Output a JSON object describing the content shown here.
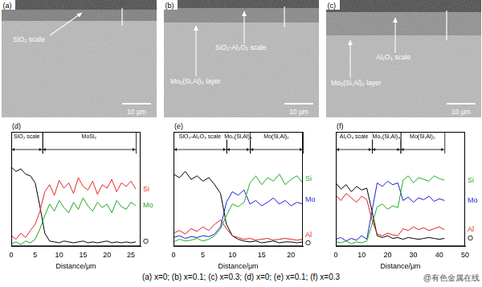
{
  "images": [
    {
      "panel": "(a)",
      "labels": [
        "SiO₂ scale"
      ],
      "scale_bar": "10 μm"
    },
    {
      "panel": "(b)",
      "labels": [
        "SiO₂-Al₂O₃ scale",
        "Mo₅(Si,Al)₃ layer"
      ],
      "scale_bar": "10 μm"
    },
    {
      "panel": "(c)",
      "labels": [
        "Al₂O₃ scale",
        "Mo₅(Si,Al)₃ layer"
      ],
      "scale_bar": "10 μm"
    }
  ],
  "chart_data": [
    {
      "type": "line",
      "panel": "(d)",
      "x_label": "Distance/μm",
      "xlim": [
        0,
        27
      ],
      "xticks": [
        0,
        5,
        10,
        15,
        20,
        25
      ],
      "ylim": [
        0,
        130
      ],
      "tick_labels": "x",
      "grid": false,
      "regions": [
        {
          "label": "SiO₂ scale",
          "start": 0,
          "end": 6.5
        },
        {
          "label": "MoSi₂",
          "start": 6.5,
          "end": 26
        }
      ],
      "x": [
        0,
        1,
        2,
        3,
        4,
        5,
        6,
        7,
        8,
        9,
        10,
        11,
        12,
        13,
        14,
        15,
        16,
        17,
        18,
        19,
        20,
        21,
        22,
        23,
        24,
        25,
        26
      ],
      "series": [
        {
          "name": "Si",
          "color": "#e8262a",
          "values": [
            12,
            8,
            15,
            10,
            18,
            25,
            40,
            62,
            70,
            58,
            75,
            66,
            72,
            60,
            78,
            68,
            64,
            74,
            59,
            70,
            66,
            76,
            62,
            72,
            68,
            74,
            65
          ]
        },
        {
          "name": "Mo",
          "color": "#22a322",
          "values": [
            3,
            5,
            2,
            6,
            4,
            8,
            20,
            35,
            48,
            40,
            52,
            44,
            38,
            50,
            42,
            55,
            46,
            40,
            50,
            44,
            48,
            38,
            52,
            45,
            42,
            50,
            46
          ]
        },
        {
          "name": "O",
          "color": "#000000",
          "values": [
            90,
            85,
            88,
            82,
            80,
            72,
            45,
            15,
            6,
            5,
            4,
            6,
            5,
            4,
            5,
            6,
            4,
            5,
            4,
            5,
            6,
            4,
            5,
            4,
            5,
            4,
            5
          ]
        }
      ]
    },
    {
      "type": "line",
      "panel": "(e)",
      "x_label": "Distance/μm",
      "xlim": [
        0,
        22
      ],
      "xticks": [
        0,
        5,
        10,
        15,
        20
      ],
      "ylim": [
        0,
        130
      ],
      "tick_labels": "x",
      "grid": false,
      "regions": [
        {
          "label": "SiO₂-Al₂O₃ scale",
          "start": 0,
          "end": 9
        },
        {
          "label": "Mo₅(Si,Al)₃",
          "start": 9,
          "end": 13
        },
        {
          "label": "Mo(Si,Al)₂",
          "start": 13,
          "end": 22
        }
      ],
      "x": [
        0,
        1,
        2,
        3,
        4,
        5,
        6,
        7,
        8,
        9,
        10,
        11,
        12,
        13,
        14,
        15,
        16,
        17,
        18,
        19,
        20,
        21,
        22
      ],
      "series": [
        {
          "name": "Si",
          "color": "#1fae1f",
          "values": [
            5,
            8,
            6,
            7,
            9,
            6,
            8,
            12,
            20,
            35,
            48,
            45,
            50,
            72,
            80,
            70,
            78,
            74,
            82,
            70,
            76,
            80,
            72
          ]
        },
        {
          "name": "Mo",
          "color": "#1f1fd0",
          "values": [
            10,
            12,
            9,
            11,
            10,
            12,
            11,
            14,
            22,
            50,
            62,
            58,
            64,
            48,
            52,
            46,
            50,
            55,
            48,
            52,
            46,
            50,
            48
          ]
        },
        {
          "name": "Al",
          "color": "#e02020",
          "values": [
            15,
            18,
            14,
            20,
            17,
            22,
            18,
            25,
            30,
            20,
            12,
            10,
            8,
            9,
            7,
            8,
            9,
            7,
            8,
            9,
            8,
            7,
            8
          ]
        },
        {
          "name": "O",
          "color": "#000000",
          "values": [
            82,
            78,
            85,
            76,
            80,
            74,
            78,
            70,
            60,
            25,
            12,
            8,
            6,
            5,
            6,
            4,
            5,
            6,
            4,
            5,
            5,
            4,
            5
          ]
        }
      ]
    },
    {
      "type": "line",
      "panel": "(f)",
      "x_label": "Distance/μm",
      "xlim": [
        0,
        50
      ],
      "xticks": [
        0,
        10,
        20,
        30,
        40,
        50
      ],
      "ylim": [
        0,
        130
      ],
      "tick_labels": "x",
      "grid": false,
      "regions": [
        {
          "label": "Al₂O₃ scale",
          "start": 0,
          "end": 14
        },
        {
          "label": "Mo₅(Si,Al)₃",
          "start": 14,
          "end": 25
        },
        {
          "label": "Mo(Si,Al)₂",
          "start": 25,
          "end": 42
        }
      ],
      "x": [
        0,
        2,
        4,
        6,
        8,
        10,
        12,
        14,
        16,
        18,
        20,
        22,
        24,
        26,
        28,
        30,
        32,
        34,
        36,
        38,
        40,
        42
      ],
      "series": [
        {
          "name": "Si",
          "color": "#1fae1f",
          "values": [
            5,
            4,
            6,
            3,
            5,
            4,
            6,
            25,
            45,
            48,
            42,
            46,
            44,
            75,
            80,
            72,
            78,
            76,
            74,
            80,
            77,
            75
          ]
        },
        {
          "name": "Mo",
          "color": "#1f1fd0",
          "values": [
            8,
            10,
            6,
            9,
            7,
            12,
            8,
            40,
            72,
            68,
            74,
            70,
            72,
            52,
            56,
            50,
            55,
            53,
            57,
            51,
            54,
            52
          ]
        },
        {
          "name": "Al",
          "color": "#e02020",
          "values": [
            58,
            52,
            60,
            55,
            50,
            57,
            53,
            30,
            14,
            12,
            15,
            13,
            12,
            20,
            18,
            22,
            19,
            21,
            18,
            20,
            22,
            19
          ]
        },
        {
          "name": "O",
          "color": "#000000",
          "values": [
            72,
            65,
            70,
            62,
            68,
            64,
            66,
            40,
            12,
            10,
            12,
            9,
            10,
            8,
            10,
            9,
            8,
            9,
            10,
            9,
            8,
            9
          ]
        }
      ]
    }
  ],
  "caption": "(a) x=0; (b) x=0.1; (c) x=0.3; (d) x=0; (e) x=0.1; (f) x=0.3",
  "watermark": "@有色金属在线"
}
